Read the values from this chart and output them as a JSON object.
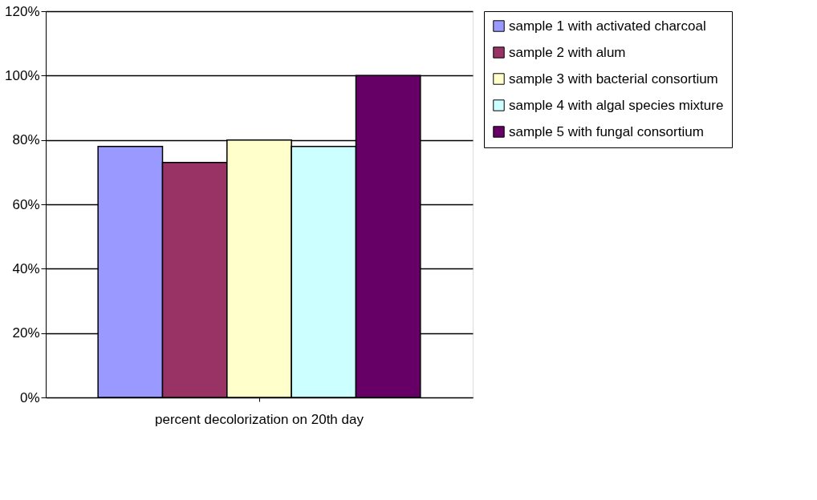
{
  "chart_data": {
    "type": "bar",
    "categories": [
      "percent decolorization on 20th day"
    ],
    "series": [
      {
        "name": "sample 1 with activated charcoal",
        "color": "#9999ff",
        "values": [
          78
        ]
      },
      {
        "name": "sample 2 with alum",
        "color": "#993366",
        "values": [
          73
        ]
      },
      {
        "name": "sample 3 with bacterial consortium",
        "color": "#ffffcc",
        "values": [
          80
        ]
      },
      {
        "name": "sample 4 with algal species mixture",
        "color": "#ccffff",
        "values": [
          78
        ]
      },
      {
        "name": "sample 5 with fungal consortium",
        "color": "#660066",
        "values": [
          100
        ]
      }
    ],
    "ylim": [
      0,
      120
    ],
    "yticks": [
      {
        "value": 0,
        "label": "0%"
      },
      {
        "value": 20,
        "label": "20%"
      },
      {
        "value": 40,
        "label": "40%"
      },
      {
        "value": 60,
        "label": "60%"
      },
      {
        "value": 80,
        "label": "80%"
      },
      {
        "value": 100,
        "label": "100%"
      },
      {
        "value": 120,
        "label": "120%"
      }
    ],
    "grid": "y",
    "legend": "right"
  }
}
